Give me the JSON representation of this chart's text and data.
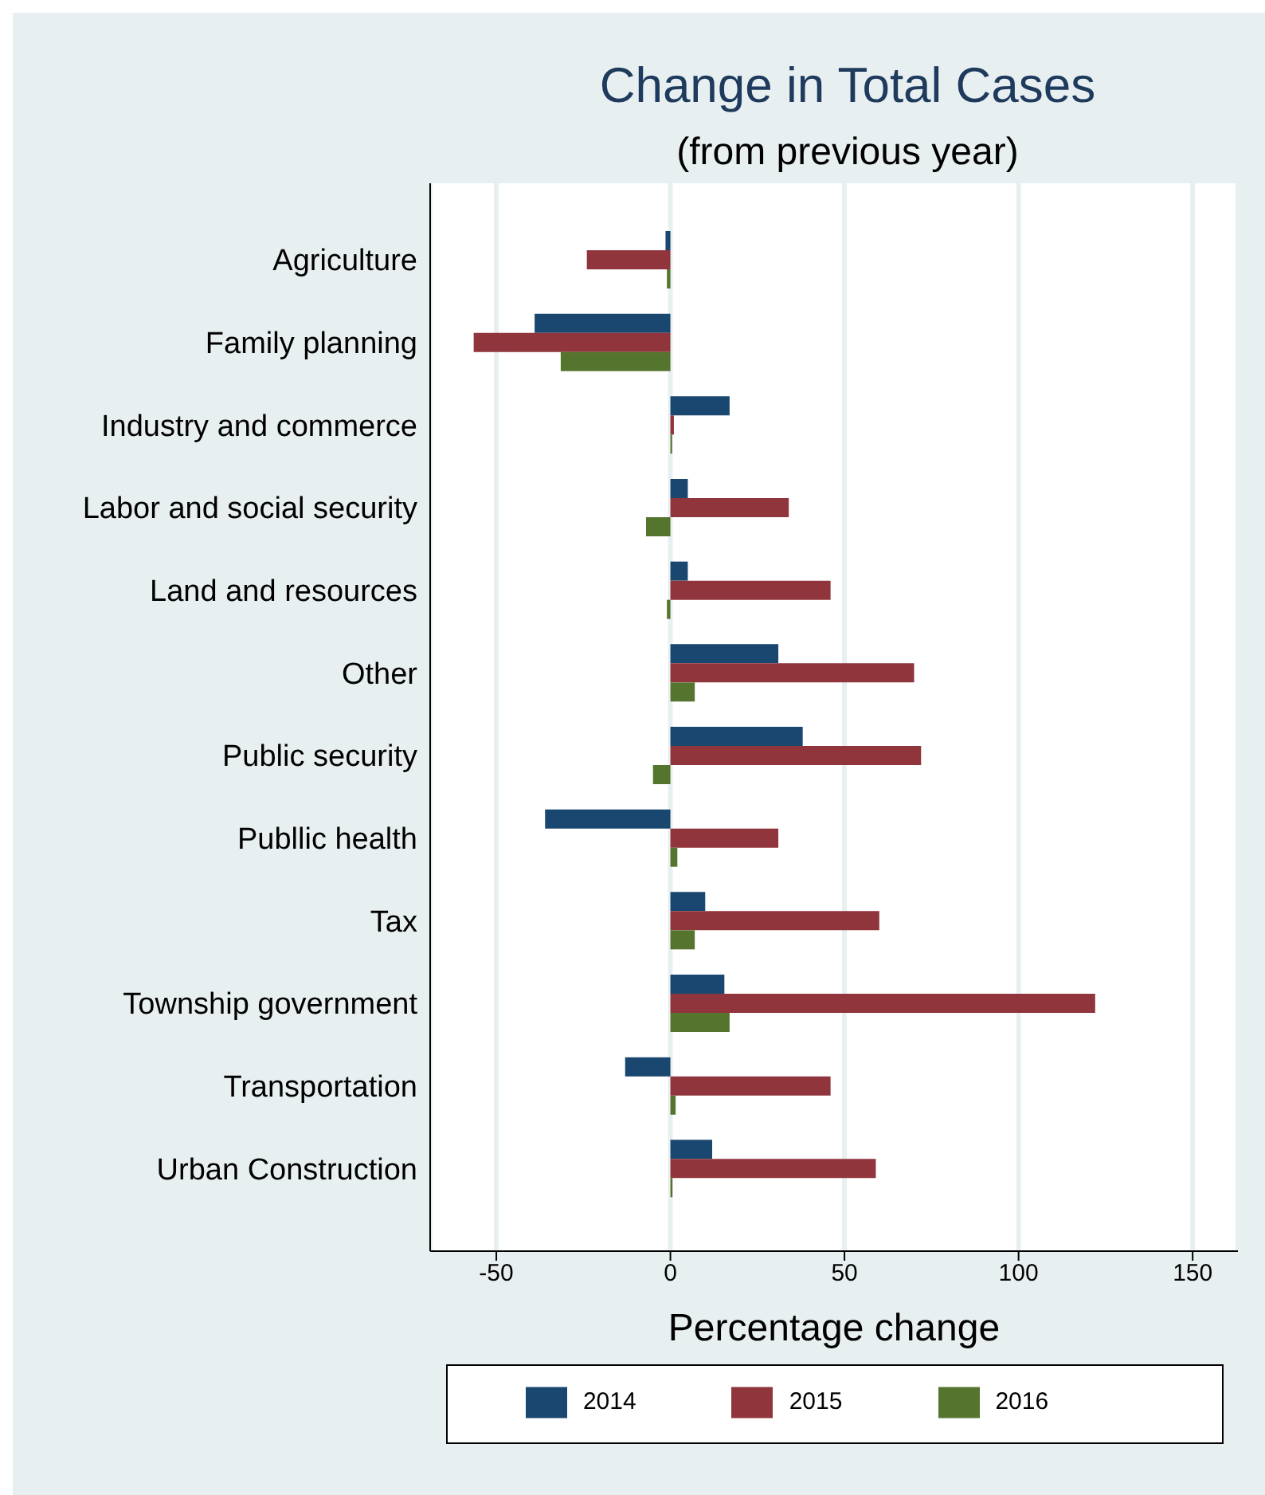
{
  "chart_data": {
    "type": "bar",
    "orientation": "horizontal",
    "title": "Change in Total Cases",
    "subtitle": "(from previous year)",
    "xlabel": "Percentage change",
    "categories": [
      "Agriculture",
      "Family planning",
      "Industry and commerce",
      "Labor and social security",
      "Land and resources",
      "Other",
      "Public security",
      "Publlic health",
      "Tax",
      "Township government",
      "Transportation",
      "Urban Construction"
    ],
    "series": [
      {
        "name": "2014",
        "color": "#1a476f",
        "values": [
          -1.4,
          -39,
          17,
          5,
          5,
          31,
          38,
          -36,
          10,
          15.5,
          -13,
          12
        ]
      },
      {
        "name": "2015",
        "color": "#90353b",
        "values": [
          -24,
          -56.5,
          1,
          34,
          46,
          70,
          72,
          31,
          60,
          122,
          46,
          59
        ]
      },
      {
        "name": "2016",
        "color": "#55752f",
        "values": [
          -1,
          -31.5,
          0.5,
          -7,
          -1,
          7,
          -5,
          2,
          7,
          17,
          1.5,
          0.6
        ]
      }
    ],
    "xlim": [
      -69,
      163
    ],
    "xticks": [
      -50,
      0,
      50,
      100,
      150
    ],
    "grid": "x",
    "legend": "bottom"
  }
}
